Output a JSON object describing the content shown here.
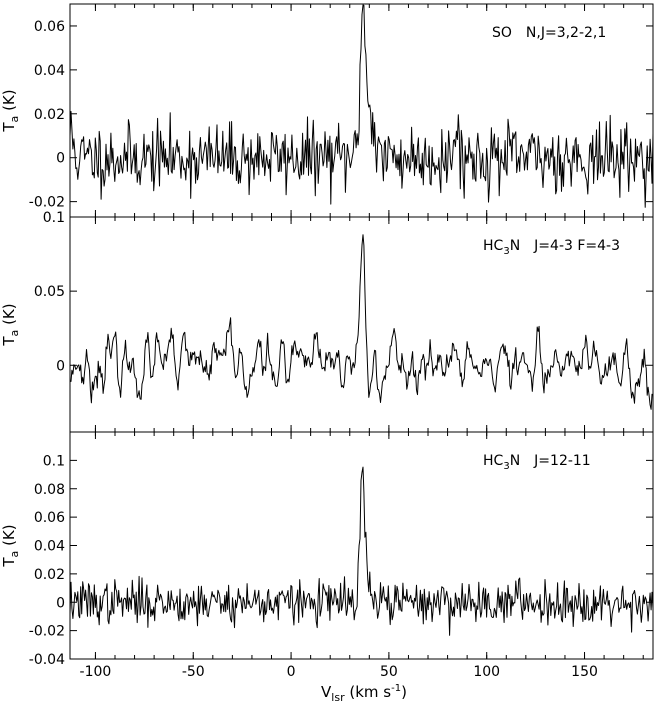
{
  "chart_data": {
    "type": "line",
    "x_axis": {
      "label_main": "V",
      "label_sub": "lsr",
      "label_units": " (km s",
      "label_sup": "-1",
      "label_close": ")",
      "xlim": [
        -113,
        185
      ],
      "ticks": [
        -100,
        -50,
        0,
        50,
        100,
        150
      ]
    },
    "panels": [
      {
        "title_species": "SO",
        "title_transition": "N,J=3,2-2,1",
        "ylabel_main": "T",
        "ylabel_sub": "a",
        "ylabel_units": " (K)",
        "ylim": [
          -0.027,
          0.07
        ],
        "yticks": [
          -0.02,
          0,
          0.02,
          0.04,
          0.06
        ],
        "ytick_labels": [
          "-0.02",
          "0",
          "0.02",
          "0.04",
          "0.06"
        ],
        "noise_rms": 0.0075,
        "baseline": 0.0,
        "peaks": [
          {
            "x": 36.5,
            "y": 0.059,
            "width": 1.2
          },
          {
            "x": 39.5,
            "y": 0.025,
            "width": 2.5
          },
          {
            "x": 85,
            "y": 0.018,
            "width": 0.8
          },
          {
            "x": -113,
            "y": 0.012,
            "width": 1.5
          }
        ],
        "seed": 11
      },
      {
        "title_species": "HC",
        "title_sub": "3",
        "title_end": "N",
        "title_transition": "J=4-3 F=4-3",
        "ylabel_main": "T",
        "ylabel_sub": "a",
        "ylabel_units": " (K)",
        "ylim": [
          -0.045,
          0.1
        ],
        "yticks": [
          0,
          0.05,
          0.1
        ],
        "ytick_labels": [
          "0",
          "0.05",
          "0.1"
        ],
        "noise_rms": 0.011,
        "baseline": 0.0,
        "smooth": 2,
        "peaks": [
          {
            "x": 36.5,
            "y": 0.075,
            "width": 1.5
          },
          {
            "x": 184,
            "y": -0.035,
            "width": 1.5
          }
        ],
        "seed": 23
      },
      {
        "title_species": "HC",
        "title_sub": "3",
        "title_end": "N",
        "title_transition": "J=12-11",
        "ylabel_main": "T",
        "ylabel_sub": "a",
        "ylabel_units": " (K)",
        "ylim": [
          -0.04,
          0.12
        ],
        "yticks": [
          -0.04,
          -0.02,
          0,
          0.02,
          0.04,
          0.06,
          0.08,
          0.1
        ],
        "ytick_labels": [
          "-0.04",
          "-0.02",
          "0",
          "0.02",
          "0.04",
          "0.06",
          "0.08",
          "0.1"
        ],
        "noise_rms": 0.0075,
        "baseline": 0.0,
        "peaks": [
          {
            "x": 36.5,
            "y": 0.094,
            "width": 1.1
          },
          {
            "x": 39,
            "y": 0.015,
            "width": 1.0
          }
        ],
        "seed": 37
      }
    ]
  }
}
